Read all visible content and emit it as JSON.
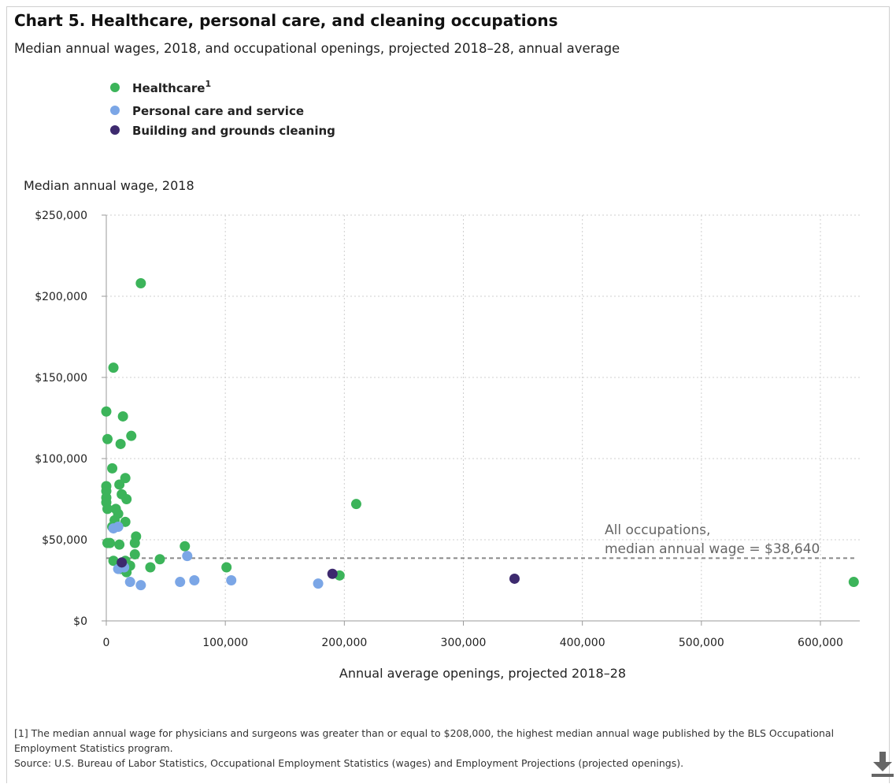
{
  "header": {
    "title": "Chart 5. Healthcare, personal care, and cleaning occupations",
    "subtitle": "Median annual wages, 2018, and occupational openings, projected 2018–28, annual average"
  },
  "footnotes": {
    "note_1": "[1] The median annual wage for physicians and surgeons was greater than or equal to $208,000, the highest median annual wage published by the BLS Occupational Employment Statistics program.",
    "source": "Source: U.S. Bureau of Labor Statistics, Occupational Employment Statistics (wages) and Employment Projections (projected openings)."
  },
  "toolbar": {
    "download_icon": "download-icon"
  },
  "chart_data": {
    "type": "scatter",
    "title": "Chart 5. Healthcare, personal care, and cleaning occupations",
    "subtitle": "Median annual wages, 2018, and occupational openings, projected 2018–28, annual average",
    "xlabel": "Annual average openings, projected 2018–28",
    "ylabel": "Median annual wage, 2018",
    "xlim": [
      0,
      630000
    ],
    "ylim": [
      0,
      250000
    ],
    "xticks": [
      0,
      100000,
      200000,
      300000,
      400000,
      500000,
      600000
    ],
    "xtick_labels": [
      "0",
      "100,000",
      "200,000",
      "300,000",
      "400,000",
      "500,000",
      "600,000"
    ],
    "yticks": [
      0,
      50000,
      100000,
      150000,
      200000,
      250000
    ],
    "ytick_labels": [
      "$0",
      "$50,000",
      "$100,000",
      "$150,000",
      "$200,000",
      "$250,000"
    ],
    "grid": true,
    "legend_position": "top-left",
    "reference_line": {
      "y": 38640,
      "label_line1": "All occupations,",
      "label_line2": "median annual wage = $38,640",
      "color": "#888888"
    },
    "series": [
      {
        "name": "Healthcare",
        "name_sup": "1",
        "color": "#3cb45a",
        "points": [
          [
            29000,
            208000
          ],
          [
            6000,
            156000
          ],
          [
            0,
            129000
          ],
          [
            14000,
            126000
          ],
          [
            1000,
            112000
          ],
          [
            21000,
            114000
          ],
          [
            12000,
            109000
          ],
          [
            5000,
            94000
          ],
          [
            16000,
            88000
          ],
          [
            11000,
            84000
          ],
          [
            0,
            83000
          ],
          [
            0,
            80000
          ],
          [
            13000,
            78000
          ],
          [
            0,
            76000
          ],
          [
            17000,
            75000
          ],
          [
            0,
            73000
          ],
          [
            210000,
            72000
          ],
          [
            1000,
            69000
          ],
          [
            8000,
            69000
          ],
          [
            10000,
            66000
          ],
          [
            7000,
            62000
          ],
          [
            16000,
            61000
          ],
          [
            5000,
            58000
          ],
          [
            25000,
            52000
          ],
          [
            24000,
            48000
          ],
          [
            1000,
            48000
          ],
          [
            3000,
            48000
          ],
          [
            11000,
            47000
          ],
          [
            66000,
            46000
          ],
          [
            24000,
            41000
          ],
          [
            45000,
            38000
          ],
          [
            16000,
            37000
          ],
          [
            6000,
            37000
          ],
          [
            20000,
            34000
          ],
          [
            37000,
            33000
          ],
          [
            101000,
            33000
          ],
          [
            12000,
            32000
          ],
          [
            196000,
            28000
          ],
          [
            17000,
            30000
          ],
          [
            628000,
            24000
          ]
        ]
      },
      {
        "name": "Personal care and service",
        "color": "#7ba6e6",
        "points": [
          [
            6000,
            57000
          ],
          [
            10000,
            58000
          ],
          [
            68000,
            40000
          ],
          [
            10000,
            32000
          ],
          [
            15000,
            33000
          ],
          [
            20000,
            24000
          ],
          [
            29000,
            22000
          ],
          [
            62000,
            24000
          ],
          [
            74000,
            25000
          ],
          [
            105000,
            25000
          ],
          [
            178000,
            23000
          ]
        ]
      },
      {
        "name": "Building and grounds cleaning",
        "color": "#3d2a6e",
        "points": [
          [
            13000,
            36000
          ],
          [
            190000,
            29000
          ],
          [
            343000,
            26000
          ]
        ]
      }
    ]
  }
}
